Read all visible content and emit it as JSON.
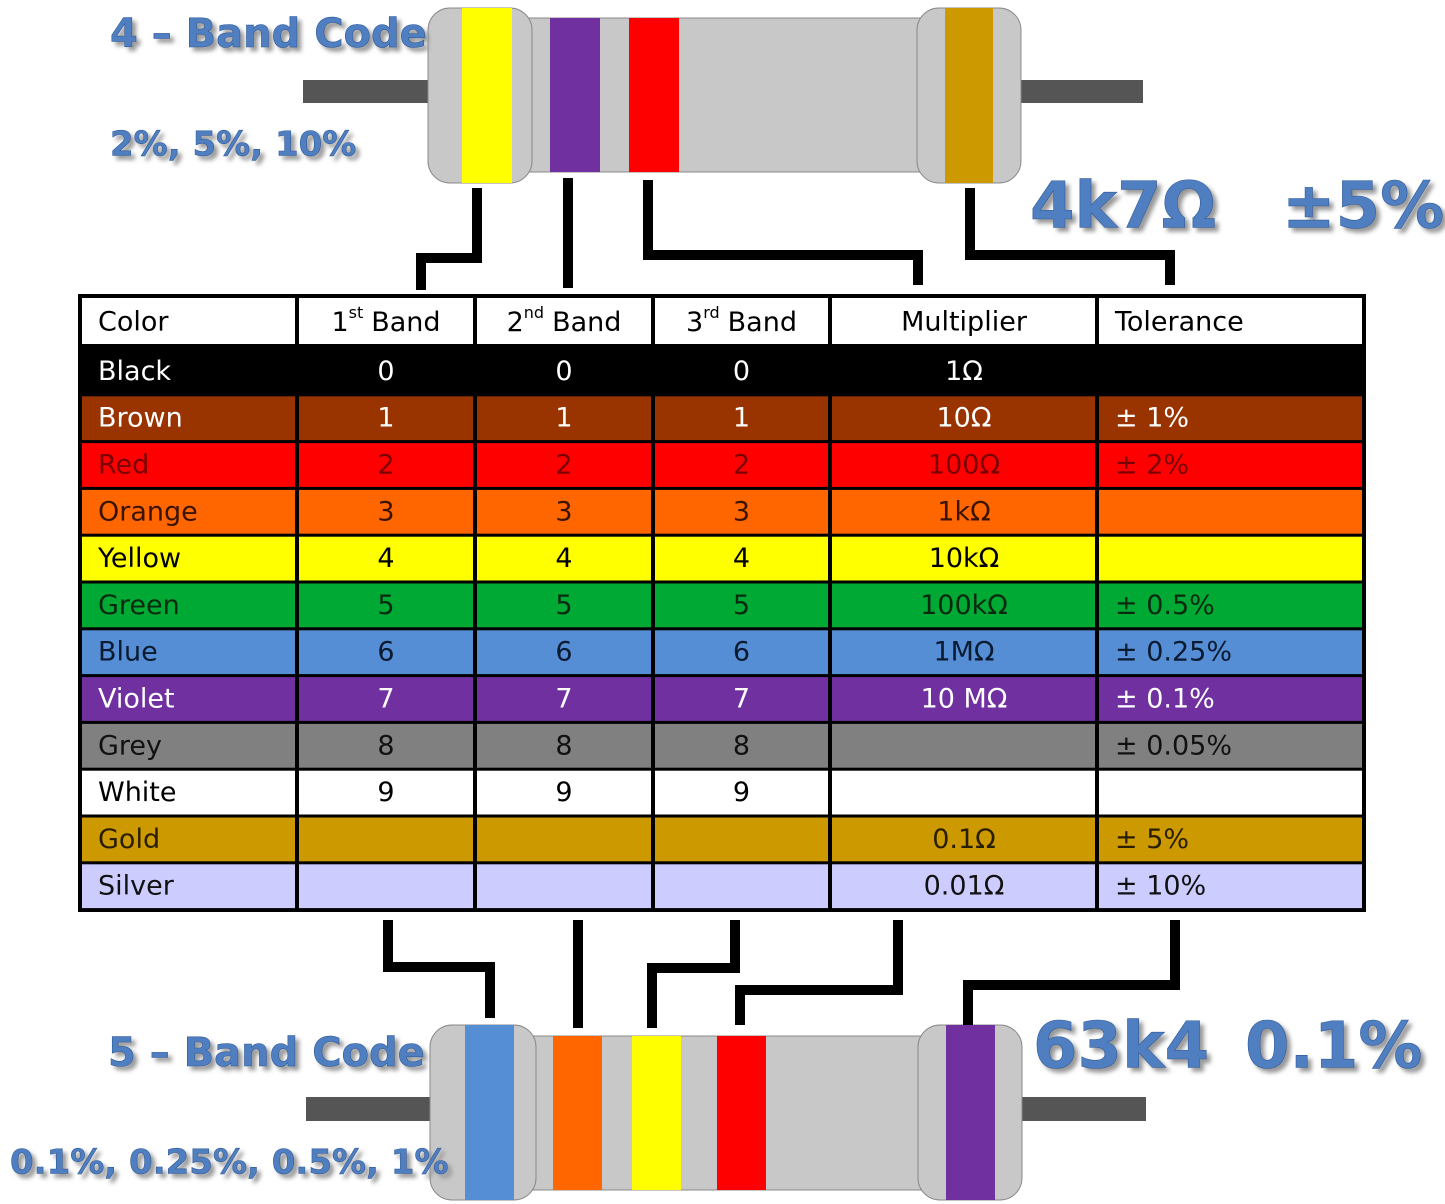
{
  "four_band": {
    "title": "4 – Band Code",
    "tolerances": "2%, 5%, 10%",
    "example_value": "4k7Ω",
    "example_tolerance": "±5%"
  },
  "five_band": {
    "title": "5 – Band Code",
    "tolerances": "0.1%, 0.25%, 0.5%, 1%",
    "example_value": "63k4",
    "example_tolerance": "0.1%"
  },
  "table": {
    "header": {
      "color": "Color",
      "bands": [
        {
          "number": "1",
          "suffix": "st",
          "word": "Band"
        },
        {
          "number": "2",
          "suffix": "nd",
          "word": "Band"
        },
        {
          "number": "3",
          "suffix": "rd",
          "word": "Band"
        }
      ],
      "multiplier": "Multiplier",
      "tolerance": "Tolerance"
    },
    "rows": [
      {
        "name": "Black",
        "fill": "#000000",
        "text_color": "#ffffff",
        "cells": [
          "0",
          "0",
          "0",
          "1Ω",
          null
        ]
      },
      {
        "name": "Brown",
        "fill": "#993300",
        "text_color": "#ffffff",
        "cells": [
          "1",
          "1",
          "1",
          "10Ω",
          "± 1%"
        ]
      },
      {
        "name": "Red",
        "fill": "#ff0000",
        "text_color": "#7a0000",
        "cells": [
          "2",
          "2",
          "2",
          "100Ω",
          "± 2%"
        ]
      },
      {
        "name": "Orange",
        "fill": "#ff6600",
        "text_color": "#3a1400",
        "cells": [
          "3",
          "3",
          "3",
          "1kΩ",
          null
        ]
      },
      {
        "name": "Yellow",
        "fill": "#ffff00",
        "text_color": "#000000",
        "cells": [
          "4",
          "4",
          "4",
          "10kΩ",
          null
        ]
      },
      {
        "name": "Green",
        "fill": "#00a933",
        "text_color": "#0a2a10",
        "cells": [
          "5",
          "5",
          "5",
          "100kΩ",
          "± 0.5%"
        ]
      },
      {
        "name": "Blue",
        "fill": "#558ed5",
        "text_color": "#0a1a30",
        "cells": [
          "6",
          "6",
          "6",
          "1MΩ",
          "± 0.25%"
        ]
      },
      {
        "name": "Violet",
        "fill": "#7030a0",
        "text_color": "#ffffff",
        "cells": [
          "7",
          "7",
          "7",
          "10 MΩ",
          "± 0.1%"
        ]
      },
      {
        "name": "Grey",
        "fill": "#808080",
        "text_color": "#111111",
        "cells": [
          "8",
          "8",
          "8",
          null,
          "± 0.05%"
        ]
      },
      {
        "name": "White",
        "fill": "#ffffff",
        "text_color": "#000000",
        "cells": [
          "9",
          "9",
          "9",
          null,
          null
        ]
      },
      {
        "name": "Gold",
        "fill": "#cc9900",
        "text_color": "#2a1e00",
        "cells": [
          null,
          null,
          null,
          "0.1Ω",
          "± 5%"
        ]
      },
      {
        "name": "Silver",
        "fill": "#ccccff",
        "text_color": "#111111",
        "cells": [
          null,
          null,
          null,
          "0.01Ω",
          "± 10%"
        ]
      }
    ]
  }
}
